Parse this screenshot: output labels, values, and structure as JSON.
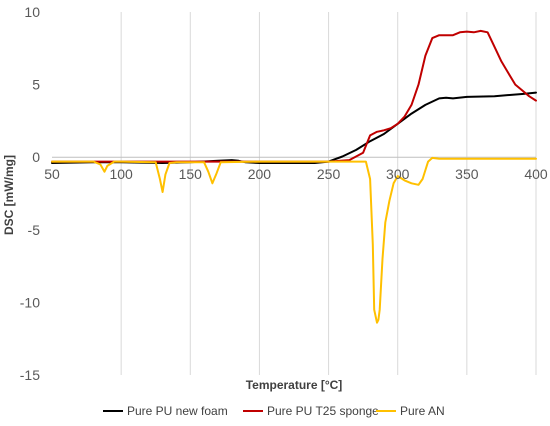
{
  "chart_data": {
    "type": "line",
    "xlabel": "Temperature [°C]",
    "ylabel": "DSC [mW/mg]",
    "xlim": [
      50,
      400
    ],
    "ylim": [
      -15,
      10
    ],
    "xticks": [
      50,
      100,
      150,
      200,
      250,
      300,
      350,
      400
    ],
    "yticks": [
      10,
      5,
      0,
      -5,
      -10,
      -15
    ],
    "xtick_labels": [
      "50",
      "100",
      "150",
      "200",
      "250",
      "300",
      "350",
      "400"
    ],
    "ytick_labels": [
      "10",
      "5",
      "0",
      "-5",
      "-10",
      "-15"
    ],
    "grid": "vertical",
    "legend_position": "bottom",
    "series": [
      {
        "name": "Pure PU new foam",
        "color": "#000000",
        "x": [
          50,
          80,
          100,
          130,
          150,
          170,
          180,
          185,
          190,
          200,
          220,
          240,
          250,
          260,
          270,
          280,
          290,
          300,
          310,
          320,
          330,
          335,
          340,
          350,
          370,
          390,
          400
        ],
        "y": [
          -0.4,
          -0.35,
          -0.35,
          -0.4,
          -0.35,
          -0.25,
          -0.2,
          -0.25,
          -0.35,
          -0.4,
          -0.4,
          -0.4,
          -0.3,
          0.05,
          0.5,
          1.1,
          1.6,
          2.3,
          3.0,
          3.6,
          4.05,
          4.1,
          4.05,
          4.15,
          4.2,
          4.35,
          4.45
        ]
      },
      {
        "name": "Pure PU T25 sponge",
        "color": "#C00000",
        "x": [
          50,
          100,
          150,
          200,
          250,
          265,
          275,
          280,
          285,
          290,
          295,
          300,
          305,
          310,
          315,
          320,
          325,
          330,
          335,
          340,
          345,
          350,
          355,
          360,
          365,
          370,
          375,
          380,
          385,
          390,
          395,
          400
        ],
        "y": [
          -0.3,
          -0.3,
          -0.3,
          -0.3,
          -0.3,
          -0.2,
          0.3,
          1.5,
          1.75,
          1.85,
          2.0,
          2.3,
          2.8,
          3.6,
          5.0,
          7.0,
          8.2,
          8.4,
          8.4,
          8.4,
          8.6,
          8.65,
          8.6,
          8.7,
          8.6,
          7.6,
          6.6,
          5.8,
          5.0,
          4.6,
          4.2,
          3.9
        ]
      },
      {
        "name": "Pure AN",
        "color": "#FFC000",
        "x": [
          50,
          80,
          85,
          88,
          90,
          95,
          100,
          125,
          128,
          130,
          132,
          135,
          140,
          160,
          163,
          166,
          169,
          172,
          200,
          250,
          270,
          277,
          280,
          282,
          283,
          285,
          286,
          287,
          289,
          291,
          294,
          297,
          300,
          305,
          310,
          315,
          318,
          322,
          325,
          330,
          350,
          400
        ],
        "y": [
          -0.3,
          -0.3,
          -0.5,
          -1.0,
          -0.6,
          -0.3,
          -0.3,
          -0.35,
          -1.5,
          -2.4,
          -1.2,
          -0.4,
          -0.35,
          -0.35,
          -1.0,
          -1.8,
          -1.1,
          -0.35,
          -0.3,
          -0.3,
          -0.3,
          -0.3,
          -1.5,
          -6.0,
          -10.5,
          -11.4,
          -11.2,
          -10.5,
          -7.0,
          -4.5,
          -3.0,
          -1.8,
          -1.3,
          -1.6,
          -1.8,
          -1.9,
          -1.5,
          -0.3,
          -0.05,
          -0.1,
          -0.1,
          -0.1
        ]
      }
    ]
  }
}
